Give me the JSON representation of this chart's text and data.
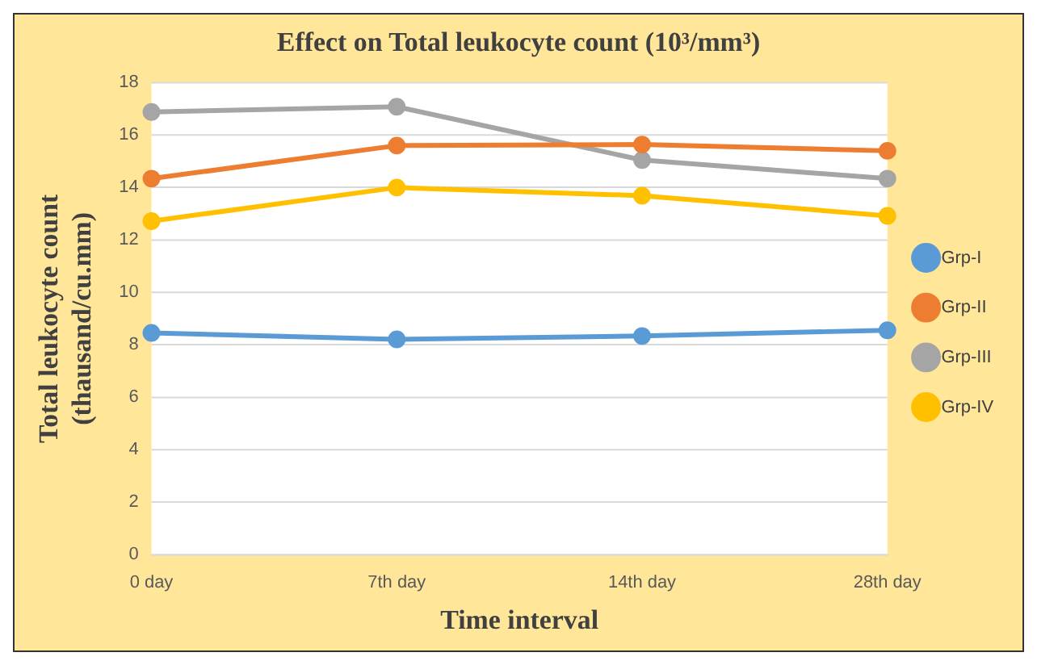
{
  "chart_data": {
    "type": "line",
    "title": "Effect on Total leukocyte count (10³/mm³)",
    "xlabel": "Time interval",
    "ylabel": "Total leukocyte count\n(thausand/cu.mm)",
    "categories": [
      "0 day",
      "7th day",
      "14th day",
      "28th day"
    ],
    "series": [
      {
        "name": "Grp-I",
        "color": "#5b9bd5",
        "values": [
          8.46,
          8.21,
          8.34,
          8.56
        ]
      },
      {
        "name": "Grp-II",
        "color": "#ed7d31",
        "values": [
          14.34,
          15.6,
          15.64,
          15.4
        ]
      },
      {
        "name": "Grp-III",
        "color": "#a5a5a5",
        "values": [
          16.88,
          17.08,
          15.05,
          14.34
        ]
      },
      {
        "name": "Grp-IV",
        "color": "#ffc000",
        "values": [
          12.72,
          14.0,
          13.69,
          12.92
        ]
      }
    ],
    "ylim": [
      0,
      18
    ],
    "yticks": [
      0,
      2,
      4,
      6,
      8,
      10,
      12,
      14,
      16,
      18
    ],
    "grid": "y",
    "legend": "right",
    "marker": "circle"
  }
}
